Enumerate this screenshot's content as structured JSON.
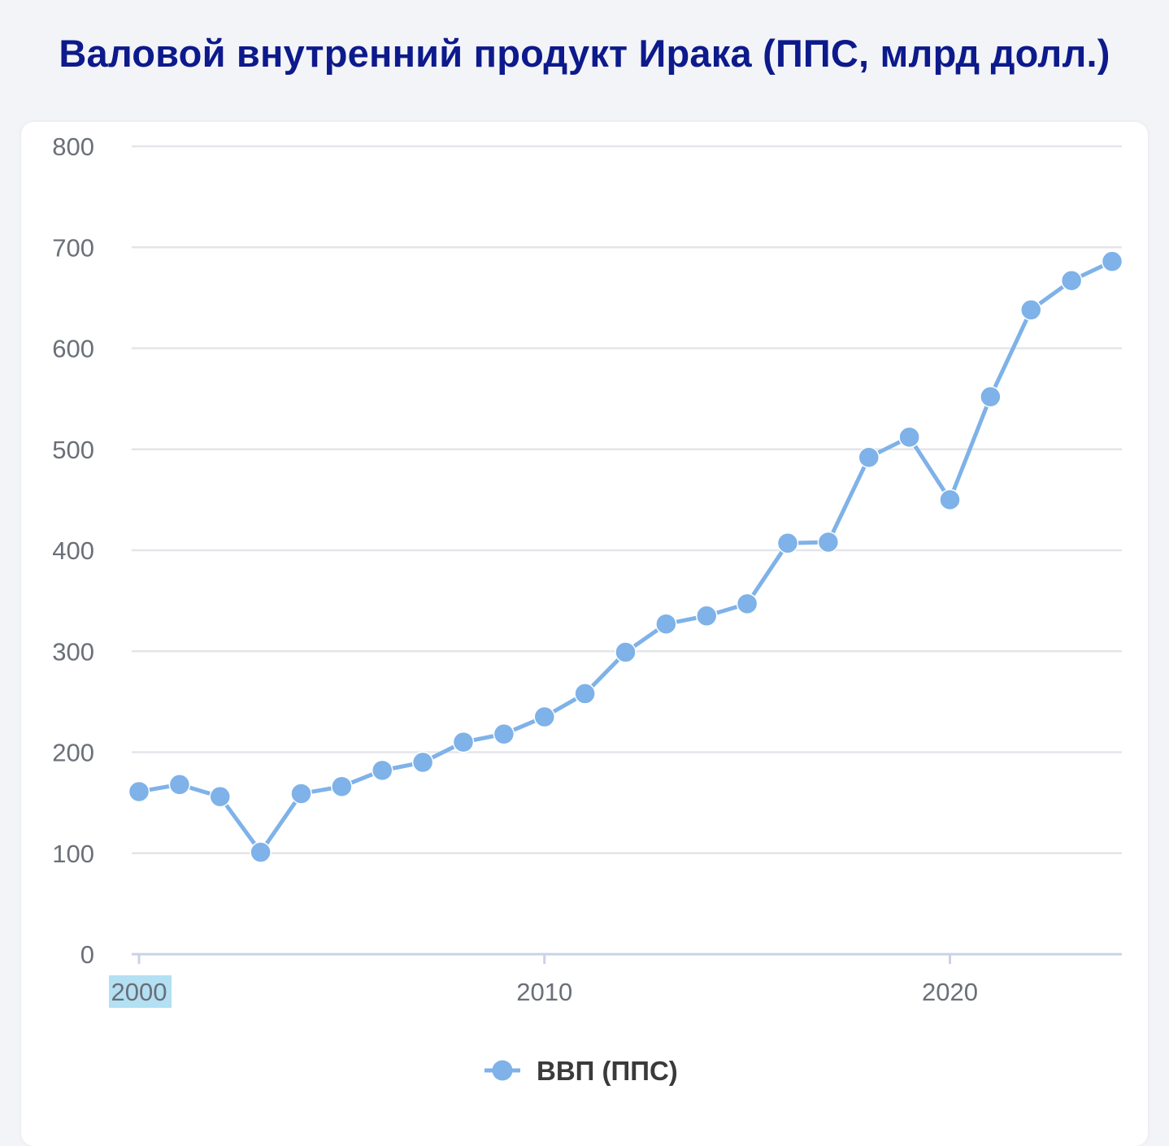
{
  "title": "Валовой внутренний продукт Ирака (ППС, млрд долл.)",
  "colors": {
    "title": "#0d1a8c",
    "series": "#7eb2e8",
    "grid": "#e4e5ea",
    "axis": "#c9d3e6",
    "highlight": "#b3e0f2"
  },
  "chart_data": {
    "type": "line",
    "title": "Валовой внутренний продукт Ирака (ППС, млрд долл.)",
    "xlabel": "",
    "ylabel": "",
    "ylim": [
      0,
      800
    ],
    "xlim": [
      2000,
      2024
    ],
    "y_ticks": [
      "0",
      "100",
      "200",
      "300",
      "400",
      "500",
      "600",
      "700",
      "800"
    ],
    "x_ticks": [
      "2000",
      "2010",
      "2020"
    ],
    "grid": true,
    "legend_position": "bottom",
    "x": [
      2000,
      2001,
      2002,
      2003,
      2004,
      2005,
      2006,
      2007,
      2008,
      2009,
      2010,
      2011,
      2012,
      2013,
      2014,
      2015,
      2016,
      2017,
      2018,
      2019,
      2020,
      2021,
      2022,
      2023,
      2024
    ],
    "series": [
      {
        "name": "ВВП (ППС)",
        "values": [
          161,
          168,
          156,
          101,
          159,
          166,
          182,
          190,
          210,
          218,
          235,
          258,
          299,
          327,
          335,
          347,
          407,
          408,
          492,
          512,
          450,
          552,
          638,
          667,
          686
        ]
      }
    ]
  }
}
